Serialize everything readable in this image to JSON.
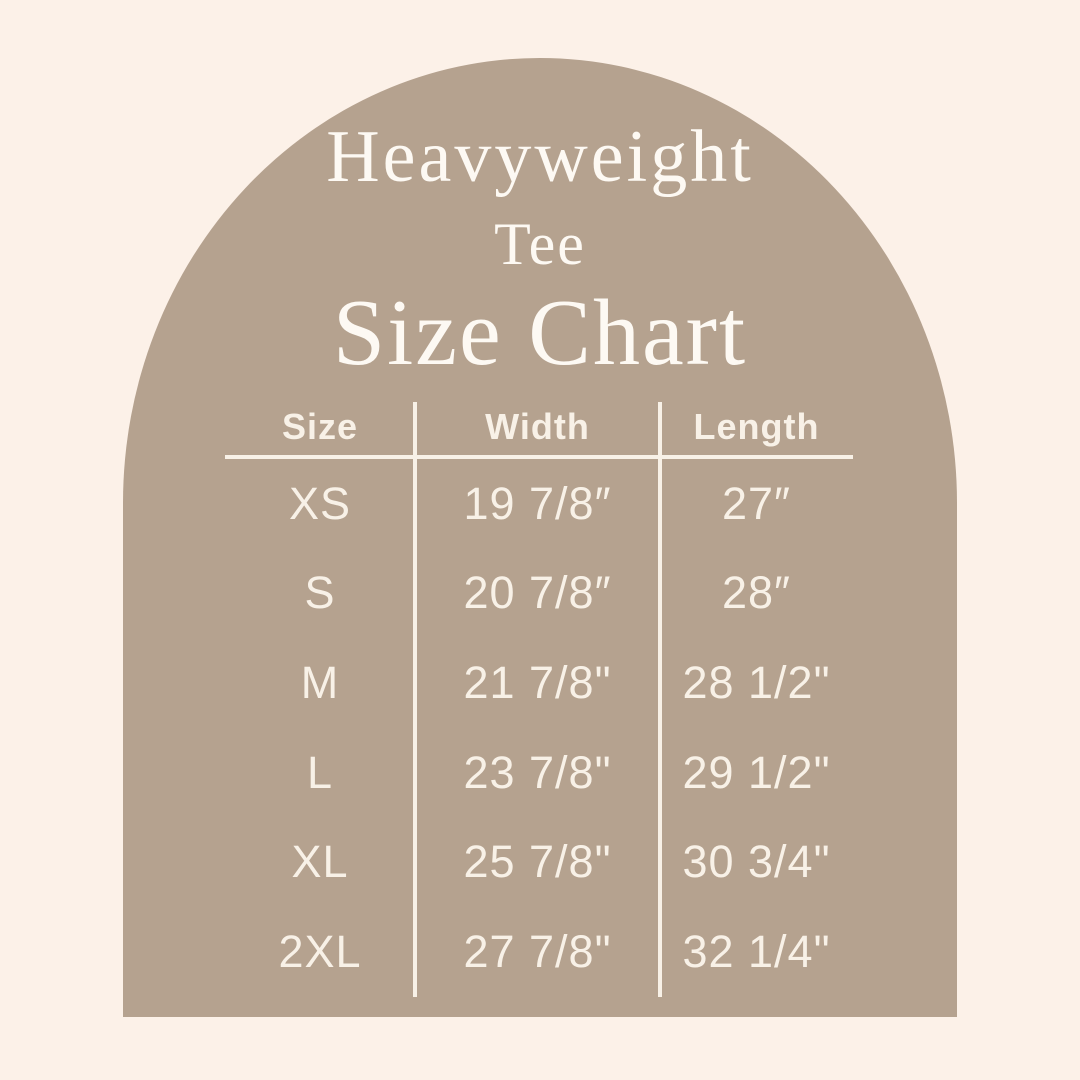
{
  "colors": {
    "background": "#FCF1E8",
    "arch": "#B5A28F",
    "title_text": "#FDF9F3",
    "table_text": "#F8F1E7",
    "divider_line": "#F8F1E7"
  },
  "title": {
    "line1": "Heavyweight",
    "line2": "Tee",
    "line3": "Size Chart"
  },
  "chart_data": {
    "type": "table",
    "title": "Heavyweight Tee Size Chart",
    "columns": [
      "Size",
      "Width",
      "Length"
    ],
    "rows": [
      [
        "XS",
        "19 7/8″",
        "27″"
      ],
      [
        "S",
        "20 7/8″",
        "28″"
      ],
      [
        "M",
        "21 7/8\"",
        "28 1/2\""
      ],
      [
        "L",
        "23 7/8\"",
        "29 1/2\""
      ],
      [
        "XL",
        "25 7/8\"",
        "30 3/4\""
      ],
      [
        "2XL",
        "27 7/8\"",
        "32 1/4\""
      ]
    ]
  }
}
